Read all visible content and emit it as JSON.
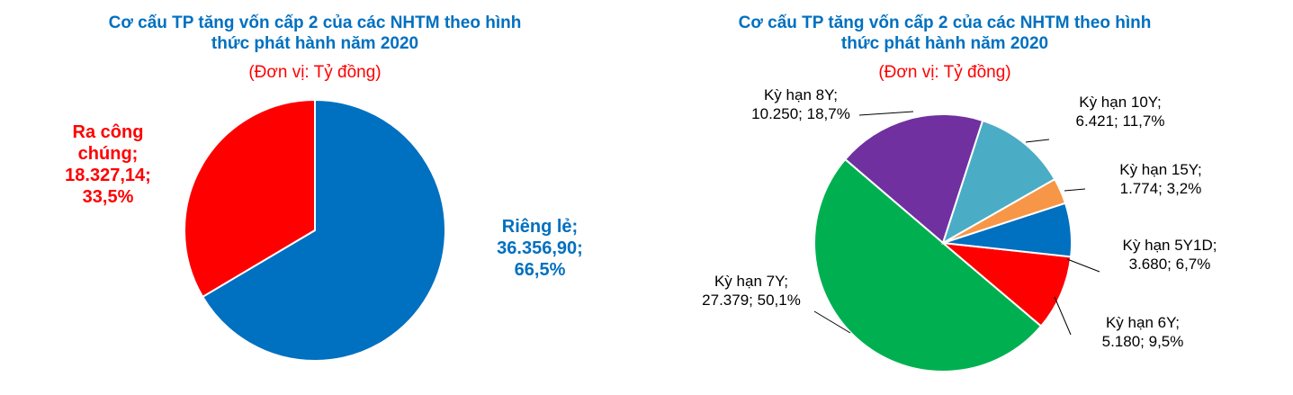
{
  "chart_data": [
    {
      "type": "pie",
      "title": "Cơ cấu TP tăng vốn cấp 2 của các NHTM theo hình thức phát hành năm 2020",
      "subtitle": "(Đơn vị: Tỷ đồng)",
      "categories": [
        "Riêng lẻ;",
        "Ra công chúng;"
      ],
      "values": [
        36356.9,
        18327.14
      ],
      "value_labels": [
        "36.356,90;",
        "18.327,14;"
      ],
      "percents": [
        66.5,
        33.5
      ],
      "percent_labels": [
        "66,5%",
        "33,5%"
      ],
      "colors": [
        "#0070c0",
        "#ff0000"
      ]
    },
    {
      "type": "pie",
      "title": "Cơ cấu TP tăng vốn cấp 2 của các NHTM theo hình thức phát hành năm 2020",
      "subtitle": "(Đơn vị: Tỷ đồng)",
      "categories": [
        "Kỳ hạn 10Y;",
        "Kỳ hạn 15Y;",
        "Kỳ hạn 5Y1D;",
        "Kỳ hạn 6Y;",
        "Kỳ hạn 7Y;",
        "Kỳ hạn 8Y;"
      ],
      "values": [
        6421,
        1774,
        3680,
        5180,
        27379,
        10250
      ],
      "value_labels": [
        "6.421;",
        "1.774;",
        "3.680;",
        "5.180;",
        "27.379;",
        "10.250;"
      ],
      "percents": [
        11.7,
        3.2,
        6.7,
        9.5,
        50.1,
        18.7
      ],
      "percent_labels": [
        "11,7%",
        "3,2%",
        "6,7%",
        "9,5%",
        "50,1%",
        "18,7%"
      ],
      "colors": [
        "#4bacc6",
        "#f79646",
        "#0070c0",
        "#ff0000",
        "#00b050",
        "#7030a0"
      ]
    }
  ]
}
